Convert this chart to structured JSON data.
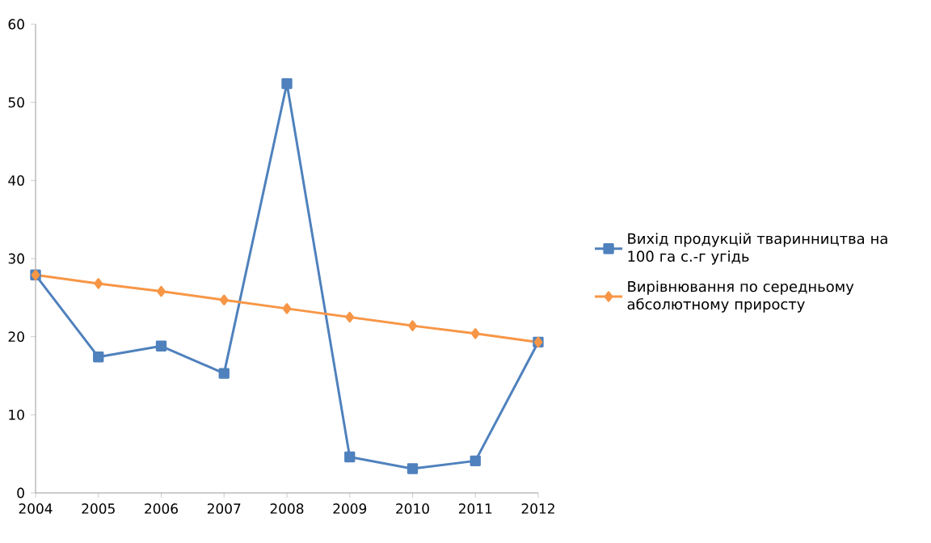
{
  "chart_data": {
    "type": "line",
    "categories": [
      "2004",
      "2005",
      "2006",
      "2007",
      "2008",
      "2009",
      "2010",
      "2011",
      "2012"
    ],
    "series": [
      {
        "name": "Вихід продукцій тваринництва на 100 га с.-г угідь",
        "color": "#4f81bd",
        "marker": "square",
        "values": [
          27.9,
          17.4,
          18.8,
          15.3,
          52.4,
          4.6,
          3.1,
          4.1,
          19.3
        ]
      },
      {
        "name": "Вирівнювання по середньому абсолютному приросту",
        "color": "#f79646",
        "marker": "diamond",
        "values": [
          27.9,
          26.8,
          25.8,
          24.7,
          23.6,
          22.5,
          21.4,
          20.4,
          19.3
        ]
      }
    ],
    "ylim": [
      0,
      60
    ],
    "yticks": [
      0,
      10,
      20,
      30,
      40,
      50,
      60
    ],
    "grid": false,
    "legend": "right",
    "line_style": "solid"
  }
}
